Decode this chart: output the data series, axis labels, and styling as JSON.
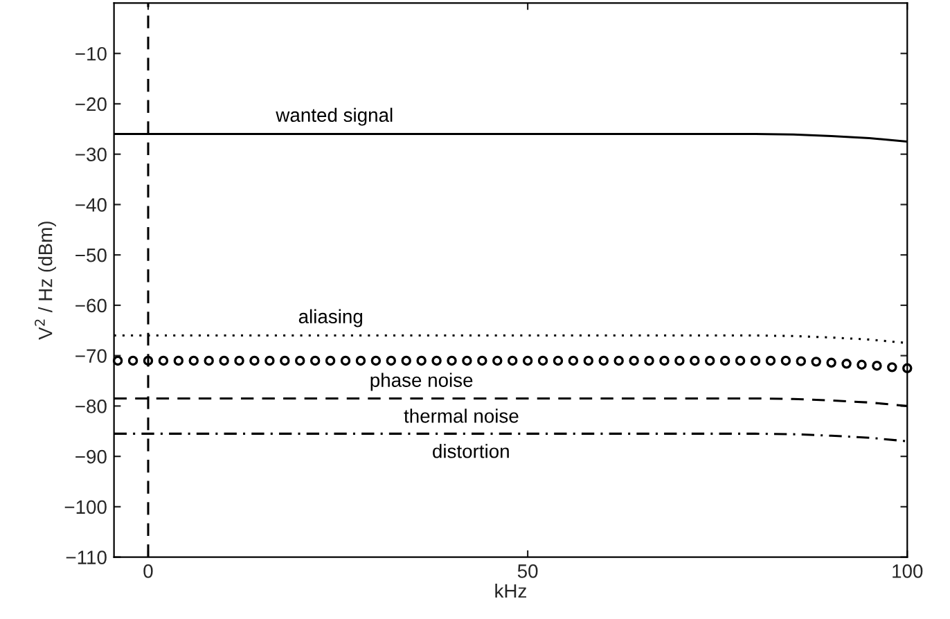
{
  "chart_data": {
    "type": "line",
    "xlabel": "kHz",
    "ylabel": "V$^{2}$ / Hz (dBm)",
    "xlim": [
      -4.5,
      100
    ],
    "ylim": [
      -110,
      0
    ],
    "xticks": [
      0,
      50,
      100
    ],
    "yticks": [
      -10,
      -20,
      -30,
      -40,
      -50,
      -60,
      -70,
      -80,
      -90,
      -100,
      -110
    ],
    "grid": false,
    "legend": false,
    "series": [
      {
        "x": [
          -4.5,
          0,
          20,
          40,
          60,
          80,
          85,
          90,
          95,
          100
        ],
        "values": [
          -26,
          -26,
          -26,
          -26,
          -26,
          -26,
          -26.1,
          -26.4,
          -26.8,
          -27.5
        ],
        "name": "wanted signal",
        "color": "#000000",
        "line_style": "solid",
        "marker": "none"
      },
      {
        "x": [
          -4.5,
          0,
          20,
          40,
          60,
          80,
          85,
          90,
          95,
          100
        ],
        "values": [
          -66,
          -66,
          -66,
          -66,
          -66,
          -66,
          -66.1,
          -66.4,
          -66.8,
          -67.5
        ],
        "name": "aliasing",
        "color": "#000000",
        "line_style": "dotted",
        "marker": "none"
      },
      {
        "type": "scatter",
        "x": [
          -4,
          -2,
          0,
          2,
          4,
          6,
          8,
          10,
          12,
          14,
          16,
          18,
          20,
          22,
          24,
          26,
          28,
          30,
          32,
          34,
          36,
          38,
          40,
          42,
          44,
          46,
          48,
          50,
          52,
          54,
          56,
          58,
          60,
          62,
          64,
          66,
          68,
          70,
          72,
          74,
          76,
          78,
          80,
          82,
          84,
          86,
          88,
          90,
          92,
          94,
          96,
          98,
          100
        ],
        "values": [
          -71,
          -71,
          -71,
          -71,
          -71,
          -71,
          -71,
          -71,
          -71,
          -71,
          -71,
          -71,
          -71,
          -71,
          -71,
          -71,
          -71,
          -71,
          -71,
          -71,
          -71,
          -71,
          -71,
          -71,
          -71,
          -71,
          -71,
          -71,
          -71,
          -71,
          -71,
          -71,
          -71,
          -71,
          -71,
          -71,
          -71,
          -71,
          -71,
          -71,
          -71,
          -71,
          -71,
          -71,
          -71,
          -71.1,
          -71.2,
          -71.4,
          -71.6,
          -71.8,
          -72,
          -72.3,
          -72.5
        ],
        "name": "phase noise",
        "color": "#000000",
        "marker": "circle"
      },
      {
        "x": [
          -4.5,
          0,
          20,
          40,
          60,
          80,
          85,
          90,
          95,
          100
        ],
        "values": [
          -78.5,
          -78.5,
          -78.5,
          -78.5,
          -78.5,
          -78.5,
          -78.6,
          -78.9,
          -79.3,
          -80
        ],
        "name": "thermal noise",
        "color": "#000000",
        "line_style": "dashed",
        "marker": "none"
      },
      {
        "x": [
          -4.5,
          0,
          20,
          40,
          60,
          80,
          85,
          90,
          95,
          100
        ],
        "values": [
          -85.5,
          -85.5,
          -85.5,
          -85.5,
          -85.5,
          -85.5,
          -85.6,
          -85.9,
          -86.3,
          -87
        ],
        "name": "distortion",
        "color": "#000000",
        "line_style": "dashdot",
        "marker": "none"
      }
    ],
    "ref_lines": [
      {
        "axis": "x",
        "value": 0,
        "label": null,
        "color": "#000000",
        "line_style": "dashed"
      }
    ]
  }
}
